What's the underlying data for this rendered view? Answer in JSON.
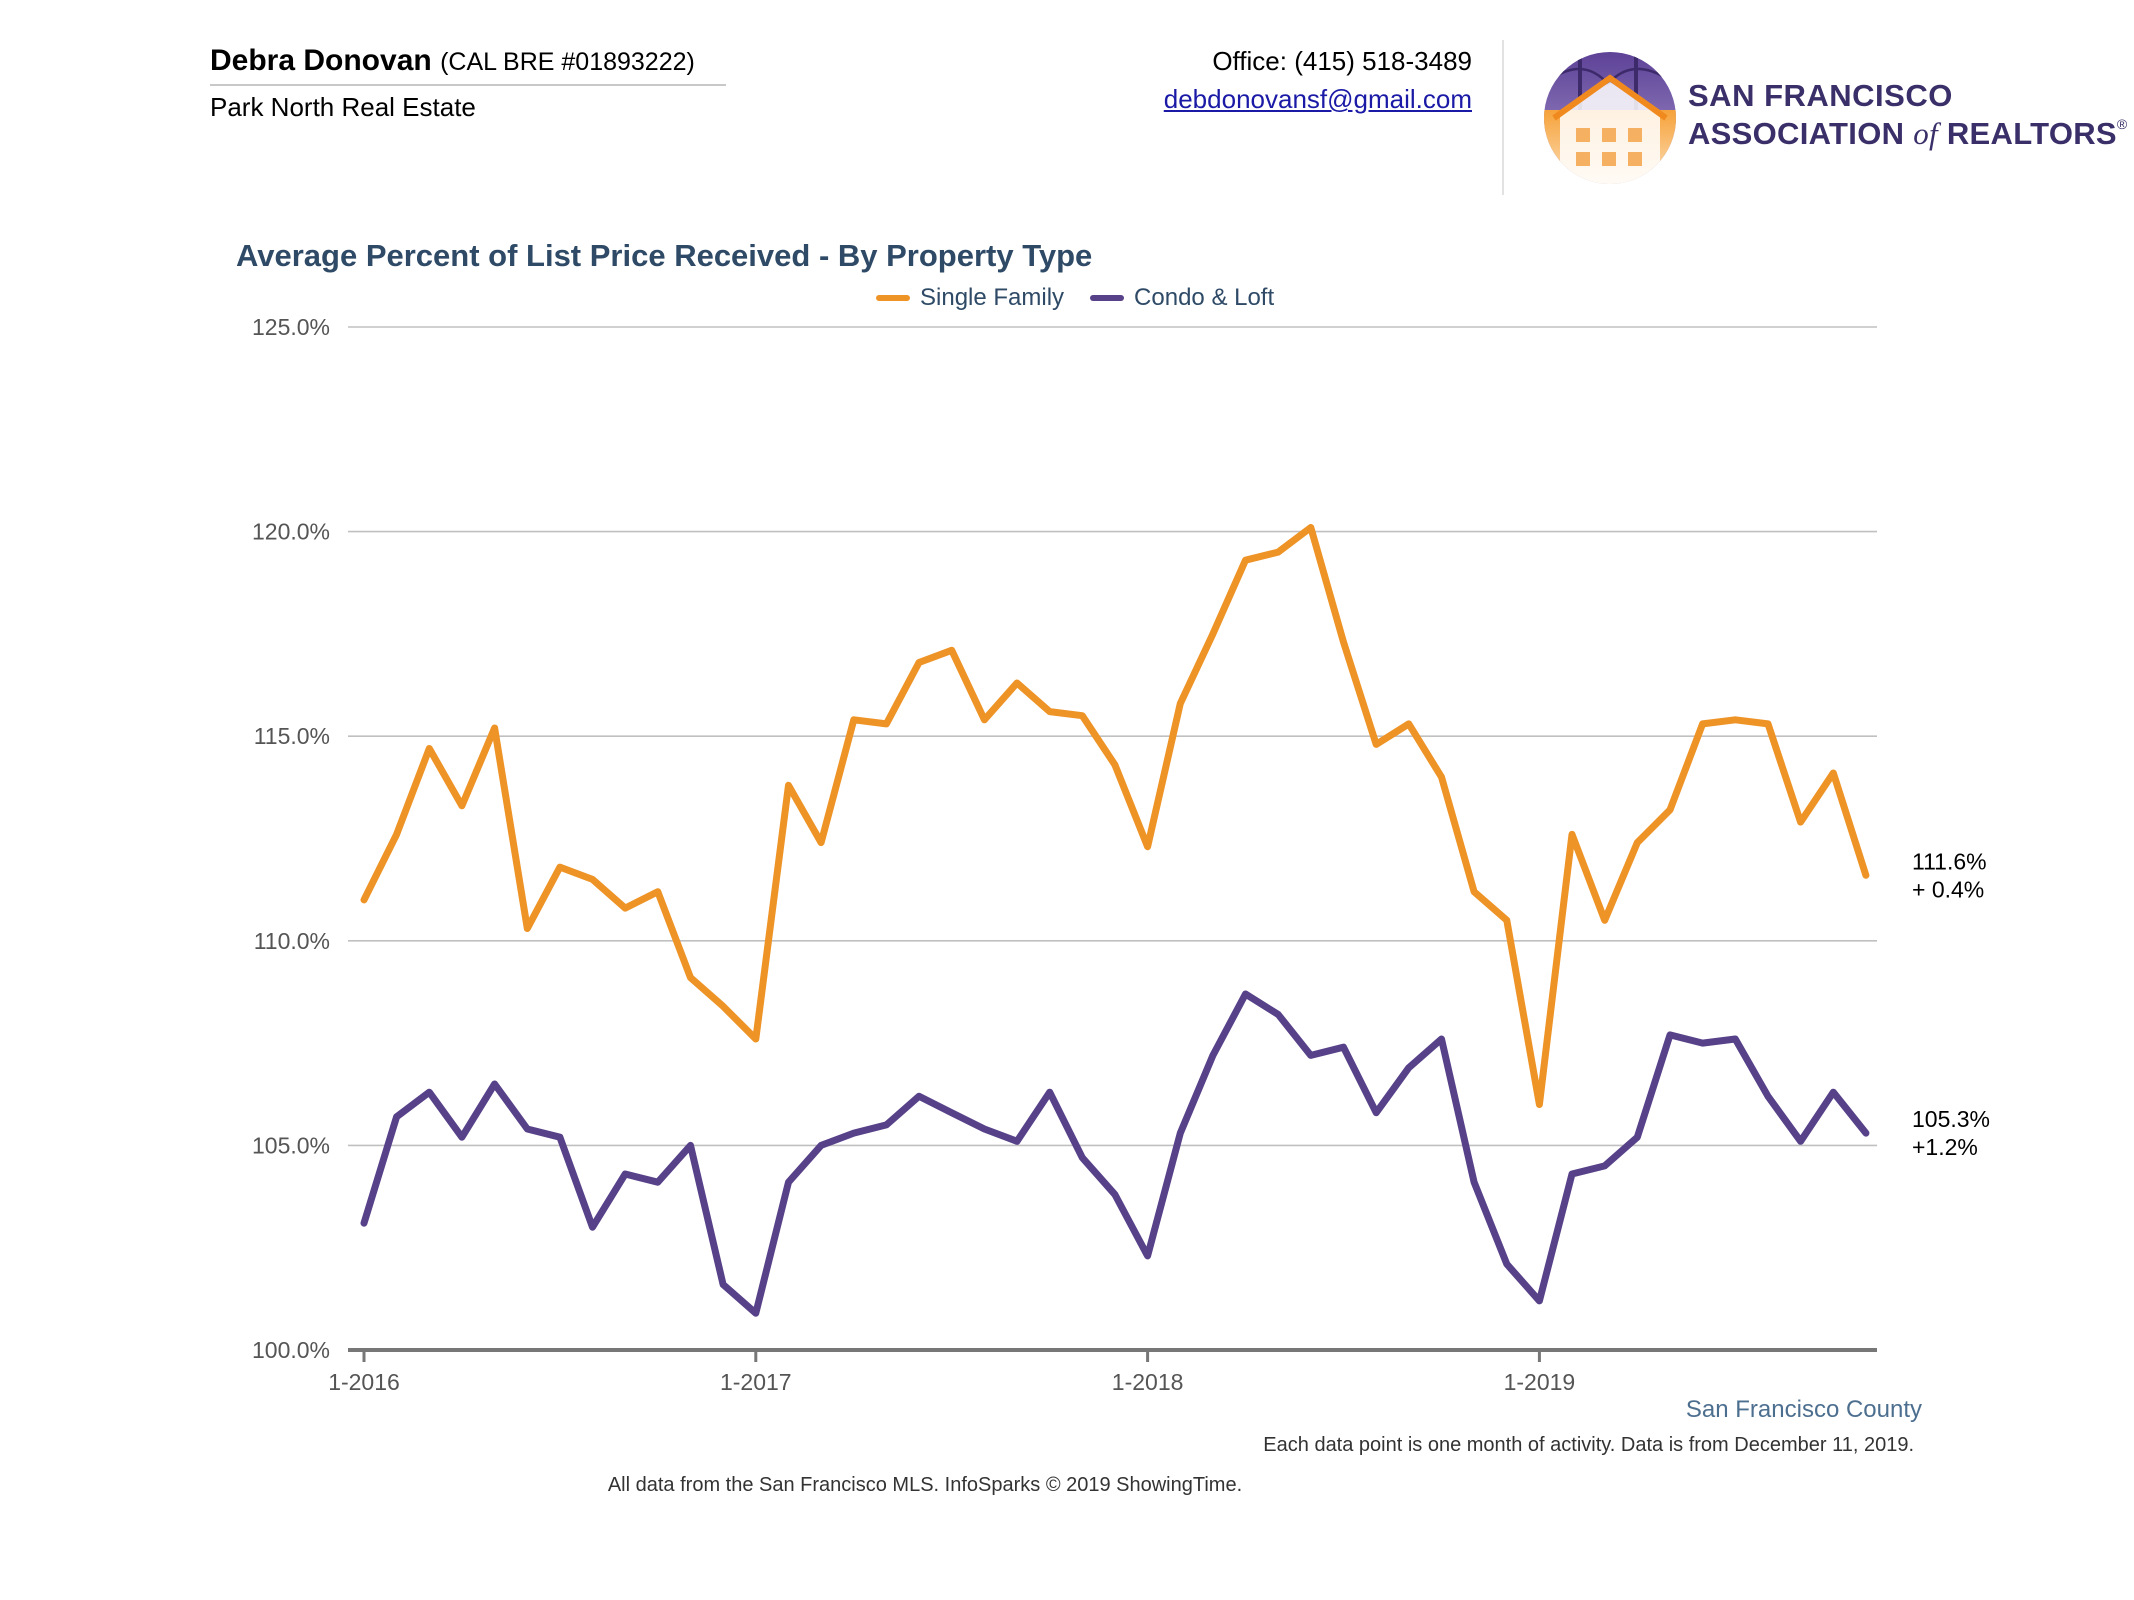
{
  "header": {
    "agent_name": "Debra Donovan",
    "agent_license": "(CAL BRE #01893222)",
    "company": "Park North Real Estate",
    "office_phone": "Office: (415) 518-3489",
    "email": "debdonovansf@gmail.com",
    "association_line1": "SAN FRANCISCO",
    "association_line2_a": "ASSOCIATION",
    "association_line2_of": "of",
    "association_line2_b": "REALTORS",
    "association_reg": "®"
  },
  "colors": {
    "single_family": "#EE9326",
    "condo_loft": "#574189",
    "title": "#2E4A66",
    "grid": "#C0C0C0",
    "axis": "#777777"
  },
  "chart_data": {
    "type": "line",
    "title": "Average Percent of List Price Received - By Property Type",
    "legend_position": "top-center",
    "grid": true,
    "ylim": [
      100,
      125
    ],
    "y_ticks": [
      "100.0%",
      "105.0%",
      "110.0%",
      "115.0%",
      "120.0%",
      "125.0%"
    ],
    "x_ticks": [
      {
        "label": "1-2016",
        "index": 0
      },
      {
        "label": "1-2017",
        "index": 12
      },
      {
        "label": "1-2018",
        "index": 24
      },
      {
        "label": "1-2019",
        "index": 36
      }
    ],
    "x_start": "1-2016",
    "series": [
      {
        "name": "Single Family",
        "color": "#EE9326",
        "values": [
          111.0,
          112.6,
          114.7,
          113.3,
          115.2,
          110.3,
          111.8,
          111.5,
          110.8,
          111.2,
          109.1,
          108.4,
          107.6,
          113.8,
          112.4,
          115.4,
          115.3,
          116.8,
          117.1,
          115.4,
          116.3,
          115.6,
          115.5,
          114.3,
          112.3,
          115.8,
          117.5,
          119.3,
          119.5,
          120.1,
          117.3,
          114.8,
          115.3,
          114.0,
          111.2,
          110.5,
          106.0,
          112.6,
          110.5,
          112.4,
          113.2,
          115.3,
          115.4,
          115.3,
          112.9,
          114.1,
          111.6
        ],
        "end_value": "111.6%",
        "end_change": "+ 0.4%"
      },
      {
        "name": "Condo & Loft",
        "color": "#574189",
        "values": [
          103.1,
          105.7,
          106.3,
          105.2,
          106.5,
          105.4,
          105.2,
          103.0,
          104.3,
          104.1,
          105.0,
          101.6,
          100.9,
          104.1,
          105.0,
          105.3,
          105.5,
          106.2,
          105.8,
          105.4,
          105.1,
          106.3,
          104.7,
          103.8,
          102.3,
          105.3,
          107.2,
          108.7,
          108.2,
          107.2,
          107.4,
          105.8,
          106.9,
          107.6,
          104.1,
          102.1,
          101.2,
          104.3,
          104.5,
          105.2,
          107.7,
          107.5,
          107.6,
          106.2,
          105.1,
          106.3,
          105.3
        ],
        "end_value": "105.3%",
        "end_change": "+1.2%"
      }
    ]
  },
  "footer": {
    "county": "San Francisco County",
    "note": "Each data point is one month of activity. Data is from December 11, 2019.",
    "source": "All data from the San Francisco MLS. InfoSparks © 2019 ShowingTime."
  }
}
